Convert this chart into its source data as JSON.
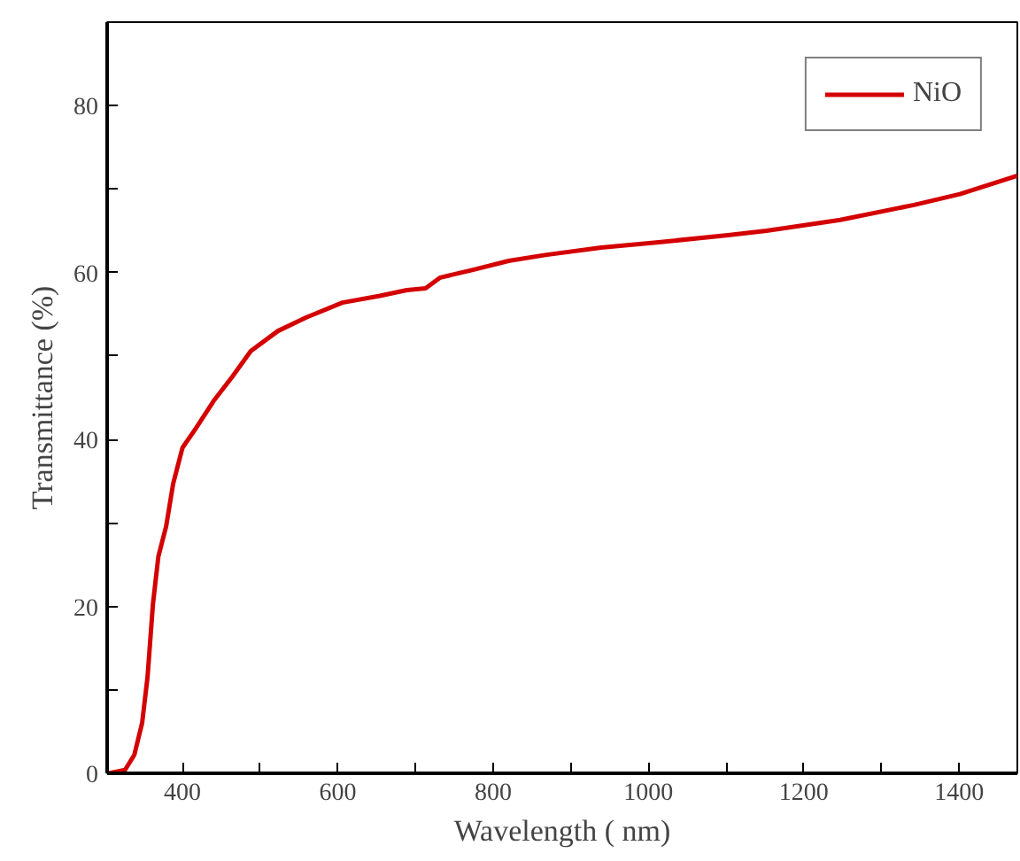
{
  "chart_data": {
    "type": "line",
    "xlabel": "Wavelength ( nm)",
    "ylabel": "Transmittance (%)",
    "xlim": [
      303,
      1475
    ],
    "ylim": [
      0,
      90
    ],
    "xticks": [
      400,
      {
        "value": 500,
        "label": null
      },
      600,
      {
        "value": 700,
        "label": null
      },
      800,
      {
        "value": 900,
        "label": null
      },
      1000,
      {
        "value": 1100,
        "label": null
      },
      1200,
      {
        "value": 1300,
        "label": null
      },
      1400
    ],
    "yticks": [
      0,
      {
        "value": 10,
        "label": null
      },
      20,
      {
        "value": 30,
        "label": null
      },
      40,
      {
        "value": 50,
        "label": null
      },
      60,
      {
        "value": 70,
        "label": null
      },
      80
    ],
    "legend": "top right",
    "grid": false,
    "series": [
      {
        "name": "NiO",
        "color": "#d40000",
        "x": [
          305,
          326,
          338,
          348,
          355,
          362,
          369,
          379,
          388,
          400,
          417,
          440,
          464,
          488,
          523,
          559,
          606,
          654,
          689,
          713,
          732,
          773,
          820,
          867,
          939,
          1010,
          1105,
          1152,
          1247,
          1342,
          1401,
          1475
        ],
        "values": [
          0,
          0.4,
          2.2,
          6,
          11.5,
          20.3,
          26,
          29.6,
          34.7,
          39,
          41.3,
          44.6,
          47.5,
          50.6,
          53,
          54.6,
          56.4,
          57.2,
          57.9,
          58.1,
          59.4,
          60.3,
          61.4,
          62.1,
          63.0,
          63.6,
          64.5,
          65,
          66.3,
          68.1,
          69.4,
          71.6
        ]
      }
    ]
  }
}
